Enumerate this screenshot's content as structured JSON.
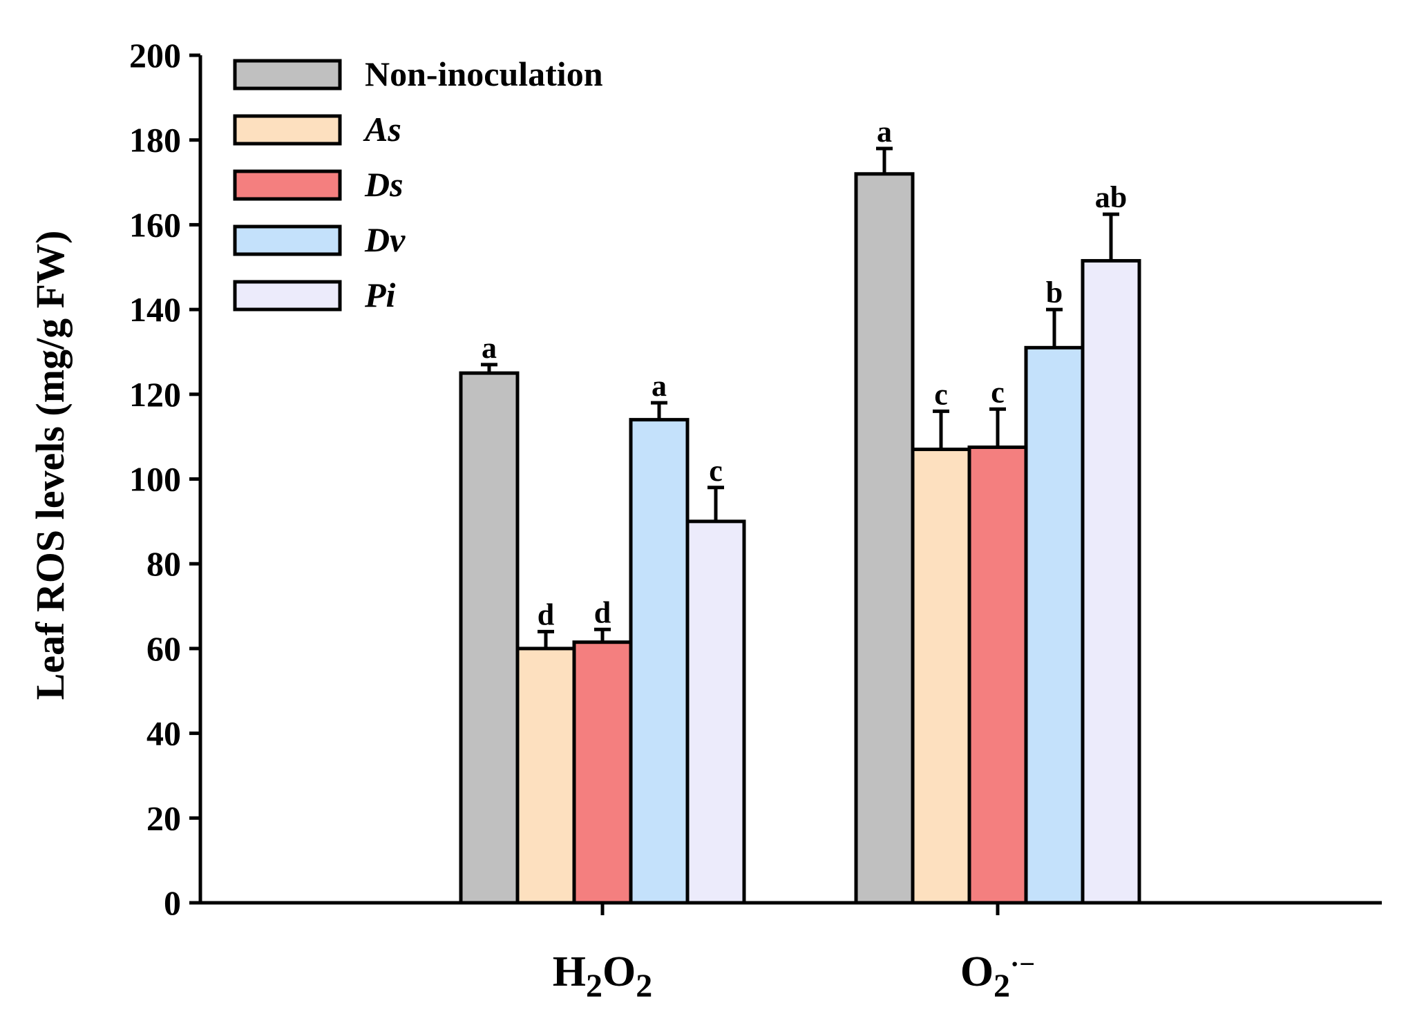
{
  "chart_data": {
    "type": "bar",
    "title": "",
    "xlabel": "",
    "ylabel": "Leaf ROS levels (mg/g FW)",
    "ylim": [
      0,
      200
    ],
    "yticks": [
      0,
      20,
      40,
      60,
      80,
      100,
      120,
      140,
      160,
      180,
      200
    ],
    "categories": [
      {
        "label": "H2O2",
        "base1": "H",
        "sub1": "2",
        "base2": "O",
        "sub2": "2",
        "sup": ""
      },
      {
        "label": "O2·−",
        "base1": "O",
        "sub1": "2",
        "base2": "",
        "sub2": "",
        "sup": "·−"
      }
    ],
    "legend_position": "top-left",
    "series": [
      {
        "name": "Non-inoculation",
        "italic": false,
        "color": "#c0c0c0",
        "values": [
          125,
          172
        ],
        "errors": [
          2,
          6
        ],
        "letters": [
          "a",
          "a"
        ]
      },
      {
        "name": "As",
        "italic": true,
        "color": "#fde0bf",
        "values": [
          60,
          107
        ],
        "errors": [
          4,
          9
        ],
        "letters": [
          "d",
          "c"
        ]
      },
      {
        "name": "Ds",
        "italic": true,
        "color": "#f47f7f",
        "values": [
          61.5,
          107.5
        ],
        "errors": [
          3,
          9
        ],
        "letters": [
          "d",
          "c"
        ]
      },
      {
        "name": "Dv",
        "italic": true,
        "color": "#c4e1fb",
        "values": [
          114,
          131
        ],
        "errors": [
          4,
          9
        ],
        "letters": [
          "a",
          "b"
        ]
      },
      {
        "name": "Pi",
        "italic": true,
        "color": "#ecebfb",
        "values": [
          90,
          151.5
        ],
        "errors": [
          8,
          11
        ],
        "letters": [
          "c",
          "ab"
        ]
      }
    ]
  }
}
